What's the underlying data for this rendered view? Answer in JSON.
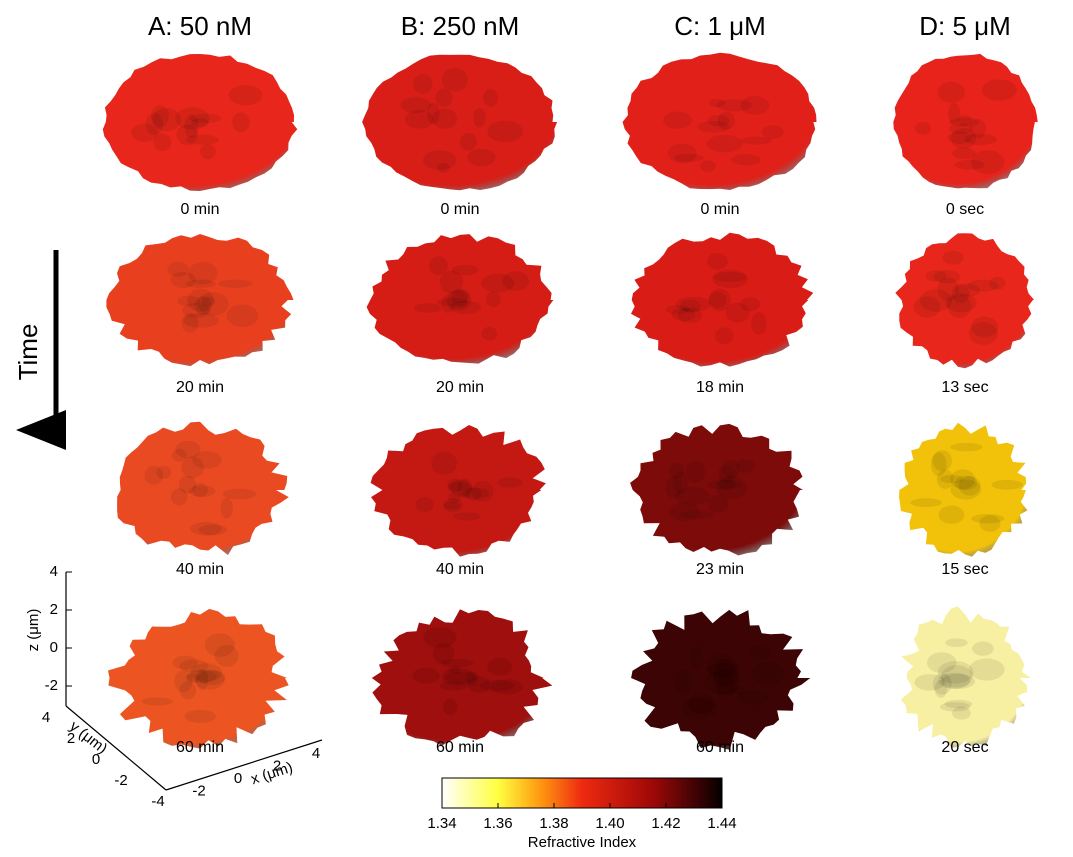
{
  "columns": [
    {
      "title": "A: 50 nM",
      "times": [
        "0 min",
        "20 min",
        "40 min",
        "60 min"
      ]
    },
    {
      "title": "B: 250 nM",
      "times": [
        "0 min",
        "20 min",
        "40 min",
        "60 min"
      ]
    },
    {
      "title": "C: 1 μM",
      "times": [
        "0 min",
        "18 min",
        "23 min",
        "60 min"
      ]
    },
    {
      "title": "D: 5 μM",
      "times": [
        "0 sec",
        "13 sec",
        "15 sec",
        "20 sec"
      ]
    }
  ],
  "time_label": "Time",
  "axes": {
    "z_label": "z (μm)",
    "z_ticks": [
      "4",
      "2",
      "0",
      "-2"
    ],
    "y_label": "y (μm)",
    "y_ticks": [
      "4",
      "2",
      "0",
      "-2",
      "-4"
    ],
    "x_label": "x (μm)",
    "x_ticks": [
      "-2",
      "0",
      "2",
      "4"
    ]
  },
  "colorbar": {
    "ticks": [
      "1.34",
      "1.36",
      "1.38",
      "1.40",
      "1.42",
      "1.44"
    ],
    "label": "Refractive Index"
  }
}
